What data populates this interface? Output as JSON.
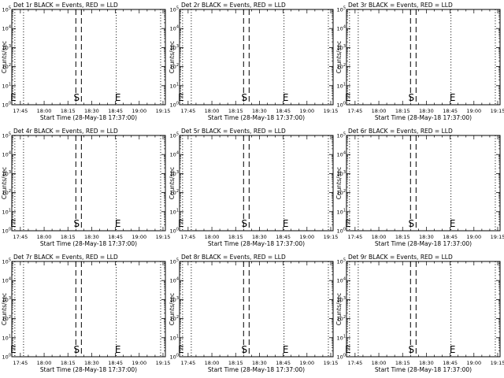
{
  "chart_data": {
    "type": "line",
    "x_unit": "time",
    "x_tick_labels": [
      "17:45",
      "18:00",
      "18:15",
      "18:30",
      "18:45",
      "19:00",
      "19:15"
    ],
    "x_tick_minutes": [
      0,
      15,
      30,
      45,
      60,
      75,
      90
    ],
    "x_range_minutes_from_1745": [
      -5.4,
      91.5
    ],
    "xlabel": "Start Time (28-May-18 17:37:00)",
    "ylabel": "Counts/sec",
    "y_scale": "log",
    "y_range": [
      1,
      100000
    ],
    "y_tick_labels": [
      {
        "base": "10",
        "exp": "0"
      },
      {
        "base": "10",
        "exp": "1"
      },
      {
        "base": "10",
        "exp": "2"
      },
      {
        "base": "10",
        "exp": "3"
      },
      {
        "base": "10",
        "exp": "4"
      },
      {
        "base": "10",
        "exp": "5"
      }
    ],
    "legend": "BLACK = Events, RED = LLD",
    "dotted_lines_minutes": [
      -3.5,
      2,
      60.5,
      88.5
    ],
    "dashed_lines_minutes": [
      35,
      38.5
    ],
    "markers": [
      {
        "label": "E",
        "minute": -4.5
      },
      {
        "label": "S",
        "minute": 35.5
      },
      {
        "label": "E",
        "minute": 61.5
      }
    ],
    "panels": [
      {
        "title": "Det 1r BLACK = Events, RED = LLD"
      },
      {
        "title": "Det 2r BLACK = Events, RED = LLD"
      },
      {
        "title": "Det 3r BLACK = Events, RED = LLD"
      },
      {
        "title": "Det 4r BLACK = Events, RED = LLD"
      },
      {
        "title": "Det 5r BLACK = Events, RED = LLD"
      },
      {
        "title": "Det 6r BLACK = Events, RED = LLD"
      },
      {
        "title": "Det 7r BLACK = Events, RED = LLD"
      },
      {
        "title": "Det 8r BLACK = Events, RED = LLD"
      },
      {
        "title": "Det 9r BLACK = Events, RED = LLD"
      }
    ]
  }
}
